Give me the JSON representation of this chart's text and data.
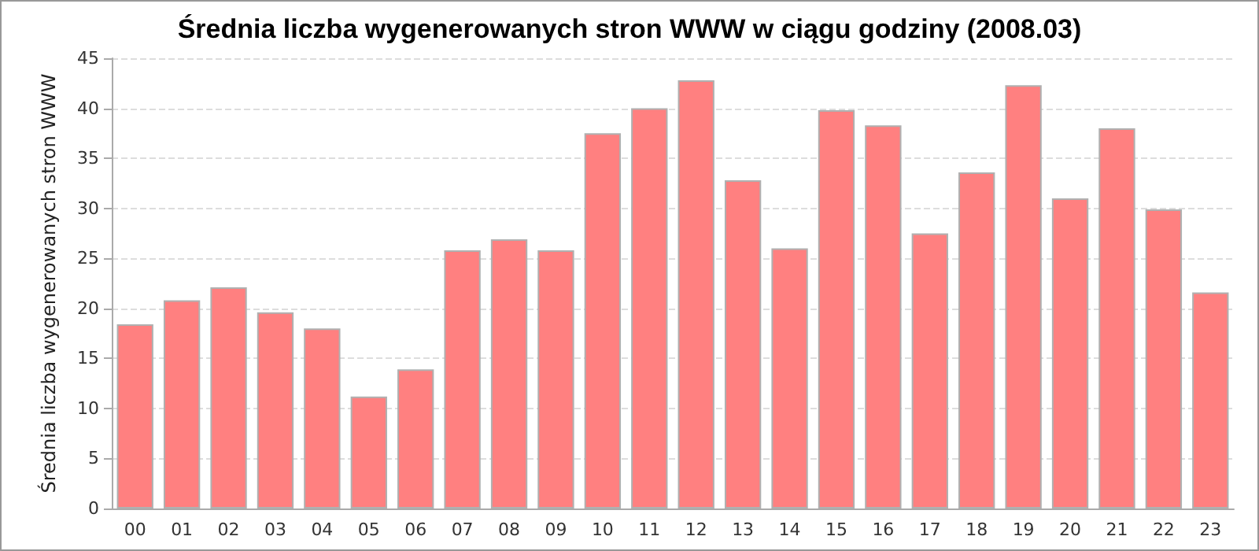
{
  "chart_data": {
    "type": "bar",
    "title": "Średnia liczba wygenerowanych stron WWW w ciągu godziny (2008.03)",
    "ylabel": "Średnia liczba wygenerowanych stron WWW",
    "categories": [
      "00",
      "01",
      "02",
      "03",
      "04",
      "05",
      "06",
      "07",
      "08",
      "09",
      "10",
      "11",
      "12",
      "13",
      "14",
      "15",
      "16",
      "17",
      "18",
      "19",
      "20",
      "21",
      "22",
      "23"
    ],
    "values": [
      18.4,
      20.8,
      22.1,
      19.6,
      18.0,
      11.2,
      13.9,
      25.8,
      26.9,
      25.8,
      37.5,
      40.0,
      42.8,
      32.8,
      26.0,
      39.8,
      38.3,
      27.5,
      33.6,
      42.3,
      31.0,
      38.0,
      29.9,
      21.6
    ],
    "color": "#ff8080",
    "ylim": [
      0,
      45
    ],
    "yticks": [
      0,
      5,
      10,
      15,
      20,
      25,
      30,
      35,
      40,
      45
    ],
    "grid": "y"
  }
}
